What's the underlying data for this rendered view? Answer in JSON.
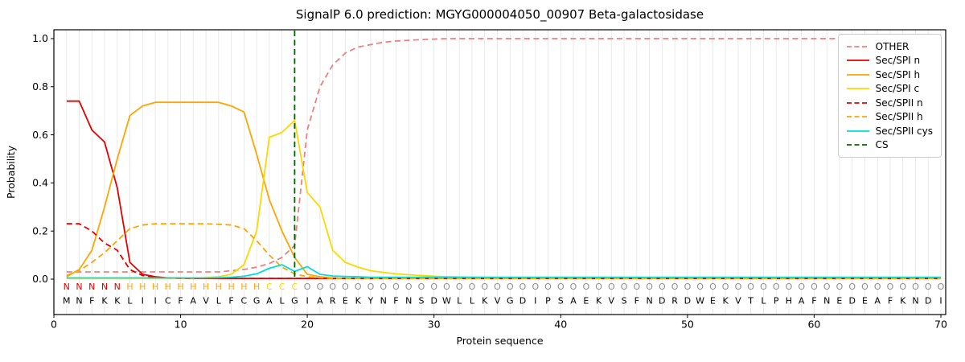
{
  "chart_data": {
    "type": "line",
    "title": "SignalP 6.0 prediction: MGYG000004050_00907 Beta-galactosidase",
    "xlabel": "Protein sequence",
    "ylabel": "Probability",
    "xlim": [
      0,
      70.4
    ],
    "ylim": [
      -0.15,
      1.04
    ],
    "grid": "light vertical gridline at every residue position",
    "legend_position": "upper right",
    "x_positions": {
      "from": 1,
      "to": 70,
      "step": 1
    },
    "xticks": [
      {
        "value": 0,
        "label": "0"
      },
      {
        "value": 10,
        "label": "10"
      },
      {
        "value": 20,
        "label": "20"
      },
      {
        "value": 30,
        "label": "30"
      },
      {
        "value": 40,
        "label": "40"
      },
      {
        "value": 50,
        "label": "50"
      },
      {
        "value": 60,
        "label": "60"
      },
      {
        "value": 70,
        "label": "70"
      }
    ],
    "yticks": [
      {
        "value": 0.0,
        "label": "0.0"
      },
      {
        "value": 0.2,
        "label": "0.2"
      },
      {
        "value": 0.4,
        "label": "0.4"
      },
      {
        "value": 0.6,
        "label": "0.6"
      },
      {
        "value": 0.8,
        "label": "0.8"
      },
      {
        "value": 1.0,
        "label": "1.0"
      }
    ],
    "colors": {
      "grid": "#e7e7e7",
      "axis": "#000000",
      "background": "#ffffff",
      "sequence_text": "#000000"
    },
    "series": [
      {
        "name": "OTHER",
        "color": "#f08080",
        "dash": "dashed",
        "values": [
          0.03,
          0.03,
          0.03,
          0.03,
          0.03,
          0.03,
          0.03,
          0.03,
          0.03,
          0.03,
          0.03,
          0.03,
          0.03,
          0.035,
          0.04,
          0.05,
          0.065,
          0.09,
          0.14,
          0.62,
          0.8,
          0.89,
          0.94,
          0.965,
          0.975,
          0.985,
          0.99,
          0.993,
          0.996,
          0.998,
          1,
          1,
          1,
          1,
          1,
          1,
          1,
          1,
          1,
          1,
          1,
          1,
          1,
          1,
          1,
          1,
          1,
          1,
          1,
          1,
          1,
          1,
          1,
          1,
          1,
          1,
          1,
          1,
          1,
          1,
          1,
          1,
          1,
          1,
          1,
          1,
          1,
          1,
          1,
          1
        ]
      },
      {
        "name": "Sec/SPI n",
        "color": "#e50000",
        "dash": "solid",
        "values": [
          0.74,
          0.74,
          0.62,
          0.57,
          0.38,
          0.07,
          0.02,
          0.01,
          0.005,
          0.004,
          0.003,
          0.003,
          0.003,
          0.003,
          0.003,
          0.003,
          0.003,
          0.003,
          0.003,
          0.003,
          0.003,
          0.003,
          0.003,
          0.003,
          0.003,
          0.003,
          0.003,
          0.003,
          0.003,
          0.003,
          0.003,
          0.003,
          0.003,
          0.003,
          0.003,
          0.003,
          0.003,
          0.003,
          0.003,
          0.003,
          0.003,
          0.003,
          0.003,
          0.003,
          0.003,
          0.003,
          0.003,
          0.003,
          0.003,
          0.003,
          0.003,
          0.003,
          0.003,
          0.003,
          0.003,
          0.003,
          0.003,
          0.003,
          0.003,
          0.003,
          0.003,
          0.003,
          0.003,
          0.003,
          0.003,
          0.003,
          0.003,
          0.003,
          0.003,
          0.003
        ]
      },
      {
        "name": "Sec/SPI h",
        "color": "#ffa500",
        "dash": "solid",
        "values": [
          0.01,
          0.04,
          0.12,
          0.3,
          0.5,
          0.68,
          0.72,
          0.735,
          0.735,
          0.735,
          0.735,
          0.735,
          0.735,
          0.72,
          0.695,
          0.52,
          0.33,
          0.2,
          0.09,
          0.02,
          0.01,
          0.005,
          0.003,
          0.003,
          0.003,
          0.003,
          0.003,
          0.003,
          0.003,
          0.003,
          0.003,
          0.003,
          0.003,
          0.003,
          0.003,
          0.003,
          0.003,
          0.003,
          0.003,
          0.003,
          0.003,
          0.003,
          0.003,
          0.003,
          0.003,
          0.003,
          0.003,
          0.003,
          0.003,
          0.003,
          0.003,
          0.003,
          0.003,
          0.003,
          0.003,
          0.003,
          0.003,
          0.003,
          0.003,
          0.003,
          0.003,
          0.003,
          0.003,
          0.003,
          0.003,
          0.003,
          0.003,
          0.003,
          0.003,
          0.003
        ]
      },
      {
        "name": "Sec/SPI c",
        "color": "#ffd700",
        "dash": "solid",
        "values": [
          0.004,
          0.004,
          0.004,
          0.004,
          0.004,
          0.004,
          0.004,
          0.004,
          0.004,
          0.004,
          0.004,
          0.006,
          0.01,
          0.02,
          0.06,
          0.2,
          0.59,
          0.61,
          0.66,
          0.36,
          0.3,
          0.12,
          0.07,
          0.05,
          0.035,
          0.028,
          0.022,
          0.018,
          0.015,
          0.012,
          0.01,
          0.009,
          0.008,
          0.007,
          0.007,
          0.005,
          0.005,
          0.005,
          0.005,
          0.005,
          0.005,
          0.005,
          0.005,
          0.005,
          0.005,
          0.005,
          0.005,
          0.005,
          0.005,
          0.005,
          0.005,
          0.005,
          0.005,
          0.005,
          0.005,
          0.005,
          0.005,
          0.005,
          0.005,
          0.005,
          0.005,
          0.005,
          0.005,
          0.005,
          0.005,
          0.005,
          0.005,
          0.005,
          0.005,
          0.005
        ]
      },
      {
        "name": "Sec/SPII n",
        "color": "#e50000",
        "dash": "dashed",
        "values": [
          0.23,
          0.23,
          0.2,
          0.15,
          0.12,
          0.04,
          0.015,
          0.008,
          0.005,
          0.004,
          0.003,
          0.003,
          0.003,
          0.003,
          0.003,
          0.003,
          0.003,
          0.003,
          0.003,
          0.003,
          0.003,
          0.003,
          0.003,
          0.003,
          0.003,
          0.003,
          0.003,
          0.003,
          0.003,
          0.003,
          0.003,
          0.003,
          0.003,
          0.003,
          0.003,
          0.003,
          0.003,
          0.003,
          0.003,
          0.003,
          0.003,
          0.003,
          0.003,
          0.003,
          0.003,
          0.003,
          0.003,
          0.003,
          0.003,
          0.003,
          0.003,
          0.003,
          0.003,
          0.003,
          0.003,
          0.003,
          0.003,
          0.003,
          0.003,
          0.003,
          0.003,
          0.003,
          0.003,
          0.003,
          0.003,
          0.003,
          0.003,
          0.003,
          0.003,
          0.003
        ]
      },
      {
        "name": "Sec/SPII h",
        "color": "#ffa500",
        "dash": "dashed",
        "values": [
          0.015,
          0.035,
          0.07,
          0.11,
          0.16,
          0.21,
          0.225,
          0.23,
          0.23,
          0.23,
          0.23,
          0.23,
          0.228,
          0.225,
          0.21,
          0.16,
          0.1,
          0.05,
          0.022,
          0.01,
          0.006,
          0.003,
          0.003,
          0.003,
          0.003,
          0.003,
          0.003,
          0.003,
          0.003,
          0.003,
          0.003,
          0.003,
          0.003,
          0.003,
          0.003,
          0.003,
          0.003,
          0.003,
          0.003,
          0.003,
          0.003,
          0.003,
          0.003,
          0.003,
          0.003,
          0.003,
          0.003,
          0.003,
          0.003,
          0.003,
          0.003,
          0.003,
          0.003,
          0.003,
          0.003,
          0.003,
          0.003,
          0.003,
          0.003,
          0.003,
          0.003,
          0.003,
          0.003,
          0.003,
          0.003,
          0.003,
          0.003,
          0.003,
          0.003,
          0.003
        ]
      },
      {
        "name": "Sec/SPII cys",
        "color": "#00dddd",
        "dash": "solid",
        "values": [
          0.005,
          0.005,
          0.005,
          0.005,
          0.005,
          0.005,
          0.005,
          0.005,
          0.005,
          0.005,
          0.005,
          0.005,
          0.006,
          0.008,
          0.012,
          0.022,
          0.045,
          0.06,
          0.032,
          0.052,
          0.02,
          0.013,
          0.011,
          0.01,
          0.008,
          0.008,
          0.008,
          0.008,
          0.008,
          0.008,
          0.008,
          0.008,
          0.008,
          0.008,
          0.008,
          0.008,
          0.008,
          0.008,
          0.008,
          0.008,
          0.008,
          0.008,
          0.008,
          0.008,
          0.008,
          0.008,
          0.008,
          0.008,
          0.008,
          0.008,
          0.008,
          0.008,
          0.008,
          0.008,
          0.008,
          0.008,
          0.008,
          0.008,
          0.008,
          0.008,
          0.008,
          0.008,
          0.008,
          0.008,
          0.008,
          0.008,
          0.008,
          0.008,
          0.008,
          0.008
        ]
      }
    ],
    "cs_line": {
      "name": "CS",
      "x": 19,
      "color": "#006400",
      "dash": "dashed"
    },
    "sequence": "MNFKKLIICFAVLFCGALGIAREKYNFNSDWLLKVGDIPSAEKVSFNDRDWEKVTLPHAFNEDEAFKNDI",
    "regions": [
      {
        "label": "N",
        "color": "#e50000",
        "start": 1,
        "end": 5
      },
      {
        "label": "H",
        "color": "#ffa500",
        "start": 6,
        "end": 16
      },
      {
        "label": "C",
        "color": "#ffd700",
        "start": 17,
        "end": 19
      },
      {
        "label": "O",
        "color": "#8c8c8c",
        "start": 20,
        "end": 70
      }
    ]
  }
}
